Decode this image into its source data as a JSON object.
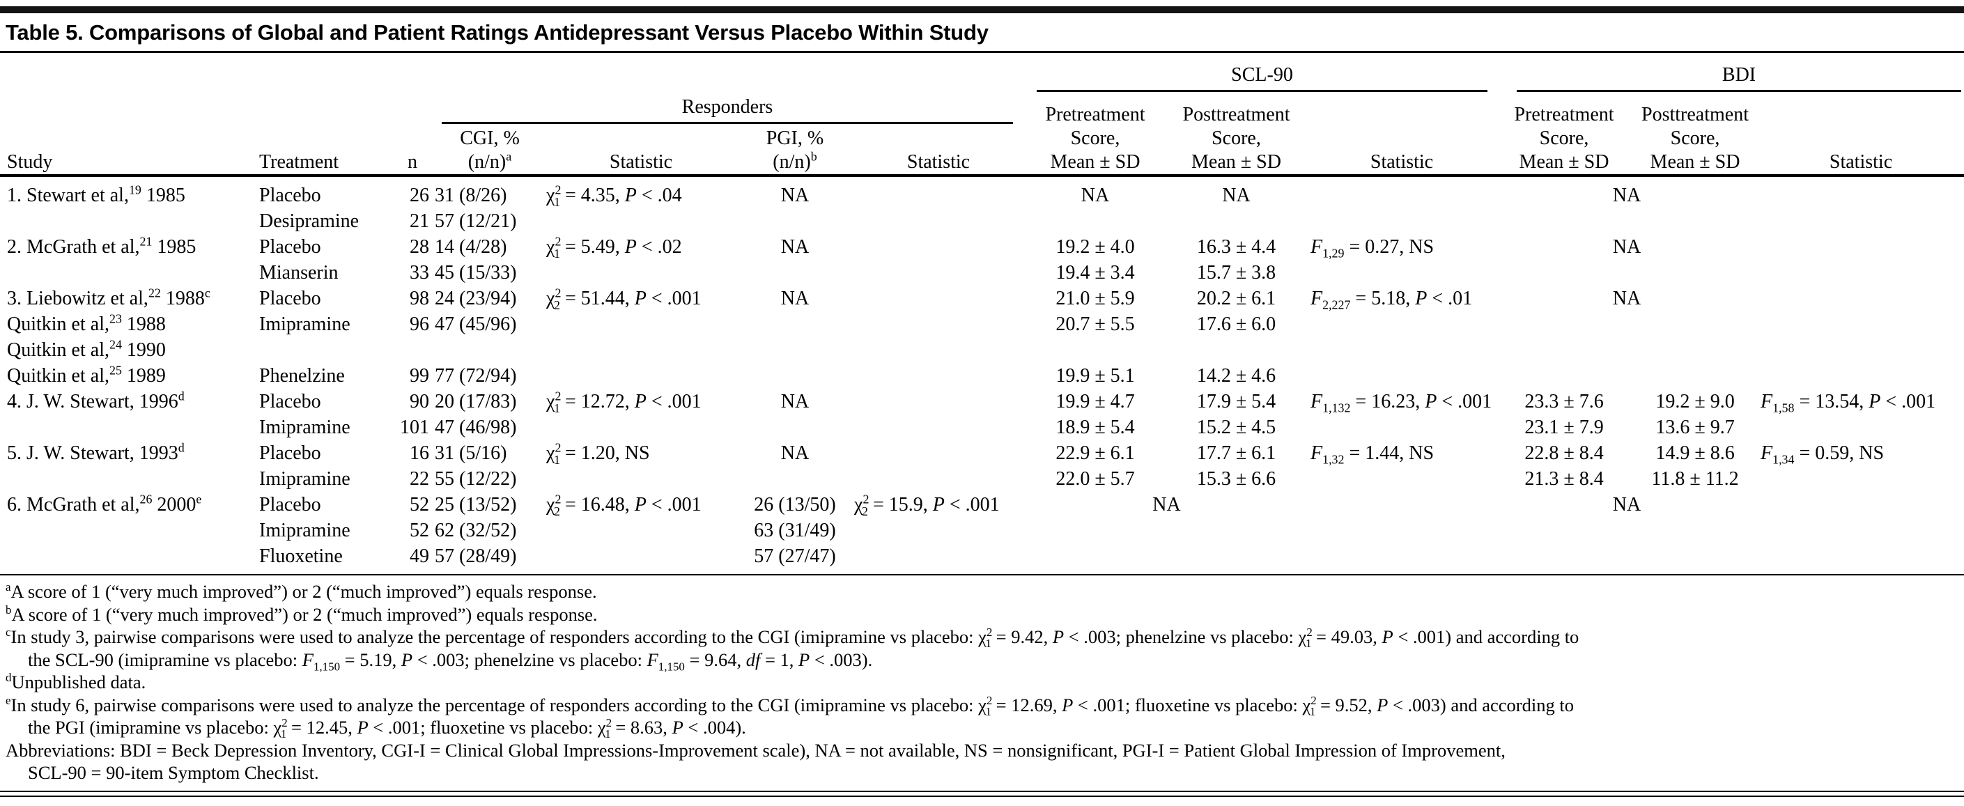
{
  "title": "Table 5. Comparisons of Global and Patient Ratings Antidepressant Versus Placebo Within Study",
  "header": {
    "study": "Study",
    "treatment": "Treatment",
    "n": "n",
    "responders": "Responders",
    "scl90": "SCL-90",
    "bdi": "BDI",
    "cgi": "CGI, %<br>(n/n)<sup>a</sup>",
    "pgi": "PGI, %<br>(n/n)<sup>b</sup>",
    "statistic": "Statistic",
    "pre": "Pretreatment<br>Score,<br>Mean ± SD",
    "post": "Posttreatment<br>Score,<br>Mean ± SD"
  },
  "table": {
    "col_align": [
      "l",
      "l",
      "r",
      "l",
      "l",
      "c",
      "l",
      "c",
      "c",
      "l",
      "c",
      "c",
      "l"
    ],
    "rows": [
      [
        "1. Stewart et al,<sup>19</sup> 1985",
        "Placebo",
        "26",
        "31 (8/26)",
        "χ<sup>2</sup><sub class='k'>1</sub> = 4.35, <i>P</i> &lt; .04",
        "NA",
        "",
        "NA",
        "NA",
        "",
        {
          "h": "NA",
          "s": 2,
          "a": "c"
        },
        ""
      ],
      [
        "",
        "Desipramine",
        "21",
        "57 (12/21)",
        "",
        "",
        "",
        "",
        "",
        "",
        "",
        "",
        ""
      ],
      [
        "2. McGrath et al,<sup>21</sup> 1985",
        "Placebo",
        "28",
        "14 (4/28)",
        "χ<sup>2</sup><sub class='k'>1</sub> = 5.49, <i>P</i> &lt; .02",
        "NA",
        "",
        "19.2 ± 4.0",
        "16.3 ± 4.4",
        "<i>F</i><sub>1,29</sub> = 0.27, NS",
        {
          "h": "NA",
          "s": 2,
          "a": "c"
        },
        ""
      ],
      [
        "",
        "Mianserin",
        "33",
        "45 (15/33)",
        "",
        "",
        "",
        "19.4 ± 3.4",
        "15.7 ± 3.8",
        "",
        "",
        "",
        ""
      ],
      [
        "3. Liebowitz et al,<sup>22</sup> 1988<sup>c</sup>",
        "Placebo",
        "98",
        "24 (23/94)",
        "χ<sup>2</sup><sub class='k'>2</sub> = 51.44, <i>P</i> &lt; .001",
        "NA",
        "",
        "21.0 ± 5.9",
        "20.2 ± 6.1",
        "<i>F</i><sub>2,227</sub> = 5.18, <i>P</i> &lt; .01",
        {
          "h": "NA",
          "s": 2,
          "a": "c"
        },
        ""
      ],
      [
        {
          "h": "Quitkin et al,<sup>23</sup> 1988",
          "cls": "ind"
        },
        "Imipramine",
        "96",
        "47 (45/96)",
        "",
        "",
        "",
        "20.7 ± 5.5",
        "17.6 ± 6.0",
        "",
        "",
        "",
        ""
      ],
      [
        {
          "h": "Quitkin et al,<sup>24</sup> 1990",
          "cls": "ind"
        },
        "",
        "",
        "",
        "",
        "",
        "",
        "",
        "",
        "",
        "",
        "",
        ""
      ],
      [
        {
          "h": "Quitkin et al,<sup>25</sup> 1989",
          "cls": "ind"
        },
        "Phenelzine",
        "99",
        "77 (72/94)",
        "",
        "",
        "",
        "19.9 ± 5.1",
        "14.2 ± 4.6",
        "",
        "",
        "",
        ""
      ],
      [
        "4. J. W. Stewart, 1996<sup>d</sup>",
        "Placebo",
        "90",
        "20 (17/83)",
        "χ<sup>2</sup><sub class='k'>1</sub> = 12.72, <i>P</i> &lt; .001",
        "NA",
        "",
        "19.9 ± 4.7",
        "17.9 ± 5.4",
        "<i>F</i><sub>1,132</sub> = 16.23, <i>P</i> &lt; .001",
        "23.3 ± 7.6",
        "19.2 ± 9.0",
        "<i>F</i><sub>1,58</sub> = 13.54, <i>P</i> &lt; .001"
      ],
      [
        "",
        "Imipramine",
        "101",
        "47 (46/98)",
        "",
        "",
        "",
        "18.9 ± 5.4",
        "15.2 ± 4.5",
        "",
        "23.1 ± 7.9",
        "13.6 ± 9.7",
        ""
      ],
      [
        "5. J. W. Stewart, 1993<sup>d</sup>",
        "Placebo",
        "16",
        "31 (5/16)",
        "χ<sup>2</sup><sub class='k'>1</sub> = 1.20, NS",
        "NA",
        "",
        "22.9 ± 6.1",
        "17.7 ± 6.1",
        "<i>F</i><sub>1,32</sub> = 1.44, NS",
        "22.8 ± 8.4",
        "14.9 ± 8.6",
        "<i>F</i><sub>1,34</sub> = 0.59, NS"
      ],
      [
        "",
        "Imipramine",
        "22",
        "55 (12/22)",
        "",
        "",
        "",
        "22.0 ± 5.7",
        "15.3 ± 6.6",
        "",
        "21.3 ± 8.4",
        "11.8 ± 11.2",
        ""
      ],
      [
        "6. McGrath et al,<sup>26</sup> 2000<sup>e</sup>",
        "Placebo",
        "52",
        "25 (13/52)",
        "χ<sup>2</sup><sub class='k'>2</sub> = 16.48, <i>P</i> &lt; .001",
        "26 (13/50)",
        "χ<sup>2</sup><sub class='k'>2</sub> = 15.9, <i>P</i> &lt; .001",
        {
          "h": "NA",
          "s": 2,
          "a": "c"
        },
        "",
        {
          "h": "NA",
          "s": 2,
          "a": "c"
        },
        ""
      ],
      [
        "",
        "Imipramine",
        "52",
        "62 (32/52)",
        "",
        "63 (31/49)",
        "",
        "",
        "",
        "",
        "",
        "",
        ""
      ],
      [
        "",
        "Fluoxetine",
        "49",
        "57 (28/49)",
        "",
        "57 (27/47)",
        "",
        "",
        "",
        "",
        "",
        "",
        ""
      ]
    ]
  },
  "footnotes": [
    "<sup>a</sup>A score of 1 (“very much improved”) or 2 (“much improved”) equals response.",
    "<sup>b</sup>A score of 1 (“very much improved”) or 2 (“much improved”) equals response.",
    "<sup>c</sup>In study 3, pairwise comparisons were used to analyze the percentage of responders according to the CGI (imipramine vs placebo: χ<sup>2</sup><sub class='k'>1</sub> = 9.42, <i>P</i> &lt; .003; phenelzine vs placebo: χ<sup>2</sup><sub class='k'>1</sub> = 49.03, <i>P</i> &lt; .001) and according to<br>the SCL-90 (imipramine vs placebo: <i>F</i><sub>1,150</sub> = 5.19, <i>P</i> &lt; .003; phenelzine vs placebo: <i>F</i><sub>1,150</sub> = 9.64, <i>df</i> = 1, <i>P</i> &lt; .003).",
    "<sup>d</sup>Unpublished data.",
    "<sup>e</sup>In study 6, pairwise comparisons were used to analyze the percentage of responders according to the CGI (imipramine vs placebo: χ<sup>2</sup><sub class='k'>1</sub> = 12.69, <i>P</i> &lt; .001; fluoxetine vs placebo: χ<sup>2</sup><sub class='k'>1</sub> = 9.52, <i>P</i> &lt; .003) and according to<br>the PGI (imipramine vs placebo: χ<sup>2</sup><sub class='k'>1</sub> = 12.45, <i>P</i> &lt; .001; fluoxetine vs placebo: χ<sup>2</sup><sub class='k'>1</sub> = 8.63, <i>P</i> &lt; .004).",
    "Abbreviations: BDI = Beck Depression Inventory, CGI-I = Clinical Global Impressions-Improvement scale), NA = not available, NS = nonsignificant, PGI-I = Patient Global Impression of Improvement,<br>SCL-90 = 90-item Symptom Checklist."
  ]
}
